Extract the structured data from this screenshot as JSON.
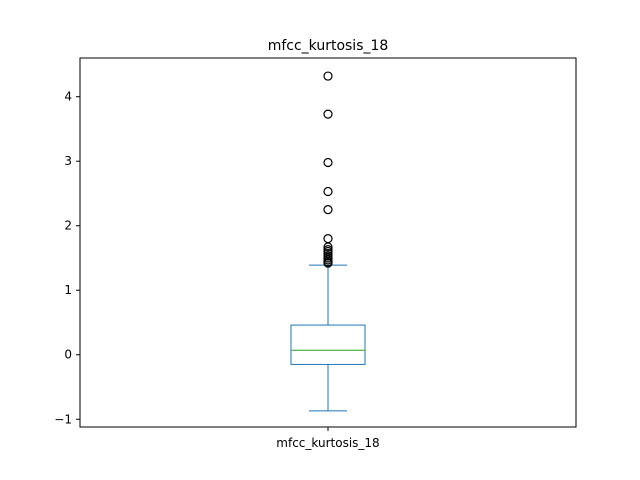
{
  "chart_data": {
    "type": "box",
    "title": "mfcc_kurtosis_18",
    "categories": [
      "mfcc_kurtosis_18"
    ],
    "xlabel": "",
    "ylabel": "",
    "ylim": [
      -1.12,
      4.6
    ],
    "yticks": [
      -1,
      0,
      1,
      2,
      3,
      4
    ],
    "ytick_labels": [
      "−1",
      "0",
      "1",
      "2",
      "3",
      "4"
    ],
    "grid": false,
    "legend": "none",
    "box": {
      "whisker_low": -0.87,
      "q1": -0.15,
      "median": 0.07,
      "q3": 0.46,
      "whisker_high": 1.39
    },
    "outliers": [
      4.32,
      3.73,
      2.98,
      2.53,
      2.25,
      1.8,
      1.67,
      1.63,
      1.6,
      1.57,
      1.53,
      1.5,
      1.47,
      1.44,
      1.42
    ],
    "colors": {
      "box": "#1f77b4",
      "median": "#2ca02c",
      "outlier_edge": "#000000",
      "axes": "#000000",
      "background": "#ffffff"
    }
  }
}
